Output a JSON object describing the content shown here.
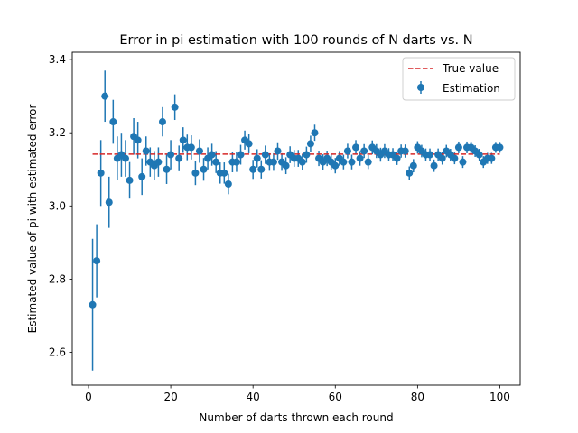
{
  "chart_data": {
    "type": "scatter",
    "title": "Error in pi estimation with 100 rounds of N darts vs. N",
    "xlabel": "Number of darts thrown each round",
    "ylabel": "Estimated value of pi with estimated error",
    "xlim": [
      -3.95,
      104.95
    ],
    "ylim": [
      2.51,
      3.42
    ],
    "xticks": [
      0,
      20,
      40,
      60,
      80,
      100
    ],
    "yticks": [
      2.6,
      2.8,
      3.0,
      3.2,
      3.4
    ],
    "xtick_labels": [
      "0",
      "20",
      "40",
      "60",
      "80",
      "100"
    ],
    "ytick_labels": [
      "2.6",
      "2.8",
      "3.0",
      "3.2",
      "3.4"
    ],
    "grid": false,
    "legend_position": "top-right",
    "colors": {
      "estimation": "#1f77b4",
      "true_value": "#d62728"
    },
    "true_value": {
      "name": "True value",
      "y": 3.14159,
      "x_range": [
        1,
        100
      ],
      "style": "dashed"
    },
    "estimation": {
      "name": "Estimation",
      "x": [
        1,
        2,
        3,
        4,
        5,
        6,
        7,
        8,
        9,
        10,
        11,
        12,
        13,
        14,
        15,
        16,
        17,
        18,
        19,
        20,
        21,
        22,
        23,
        24,
        25,
        26,
        27,
        28,
        29,
        30,
        31,
        32,
        33,
        34,
        35,
        36,
        37,
        38,
        39,
        40,
        41,
        42,
        43,
        44,
        45,
        46,
        47,
        48,
        49,
        50,
        51,
        52,
        53,
        54,
        55,
        56,
        57,
        58,
        59,
        60,
        61,
        62,
        63,
        64,
        65,
        66,
        67,
        68,
        69,
        70,
        71,
        72,
        73,
        74,
        75,
        76,
        77,
        78,
        79,
        80,
        81,
        82,
        83,
        84,
        85,
        86,
        87,
        88,
        89,
        90,
        91,
        92,
        93,
        94,
        95,
        96,
        97,
        98,
        99,
        100
      ],
      "y": [
        2.73,
        2.85,
        3.09,
        3.3,
        3.01,
        3.23,
        3.13,
        3.14,
        3.13,
        3.07,
        3.19,
        3.18,
        3.08,
        3.15,
        3.12,
        3.11,
        3.12,
        3.23,
        3.1,
        3.14,
        3.27,
        3.13,
        3.18,
        3.16,
        3.16,
        3.09,
        3.15,
        3.1,
        3.13,
        3.14,
        3.12,
        3.09,
        3.09,
        3.06,
        3.12,
        3.12,
        3.14,
        3.18,
        3.17,
        3.1,
        3.13,
        3.1,
        3.14,
        3.12,
        3.12,
        3.15,
        3.12,
        3.11,
        3.14,
        3.13,
        3.13,
        3.12,
        3.14,
        3.17,
        3.2,
        3.13,
        3.12,
        3.13,
        3.12,
        3.11,
        3.13,
        3.12,
        3.15,
        3.12,
        3.16,
        3.13,
        3.15,
        3.12,
        3.16,
        3.15,
        3.14,
        3.15,
        3.14,
        3.14,
        3.13,
        3.15,
        3.15,
        3.09,
        3.11,
        3.16,
        3.15,
        3.14,
        3.14,
        3.11,
        3.14,
        3.13,
        3.15,
        3.14,
        3.13,
        3.16,
        3.12,
        3.16,
        3.16,
        3.15,
        3.14,
        3.12,
        3.13,
        3.13,
        3.16,
        3.16
      ],
      "error": [
        0.18,
        0.1,
        0.09,
        0.07,
        0.07,
        0.06,
        0.06,
        0.06,
        0.05,
        0.05,
        0.05,
        0.05,
        0.05,
        0.04,
        0.04,
        0.04,
        0.04,
        0.04,
        0.04,
        0.04,
        0.035,
        0.035,
        0.035,
        0.035,
        0.033,
        0.033,
        0.032,
        0.031,
        0.03,
        0.03,
        0.03,
        0.029,
        0.029,
        0.028,
        0.028,
        0.027,
        0.027,
        0.026,
        0.026,
        0.026,
        0.025,
        0.025,
        0.025,
        0.024,
        0.024,
        0.024,
        0.024,
        0.023,
        0.023,
        0.023,
        0.023,
        0.022,
        0.022,
        0.022,
        0.022,
        0.021,
        0.021,
        0.021,
        0.021,
        0.021,
        0.02,
        0.02,
        0.02,
        0.02,
        0.02,
        0.02,
        0.019,
        0.019,
        0.019,
        0.019,
        0.019,
        0.019,
        0.018,
        0.018,
        0.018,
        0.018,
        0.018,
        0.018,
        0.018,
        0.017,
        0.017,
        0.017,
        0.017,
        0.017,
        0.017,
        0.017,
        0.017,
        0.016,
        0.016,
        0.016,
        0.016,
        0.016,
        0.016,
        0.016,
        0.016,
        0.016,
        0.015,
        0.015,
        0.015,
        0.015
      ]
    }
  }
}
